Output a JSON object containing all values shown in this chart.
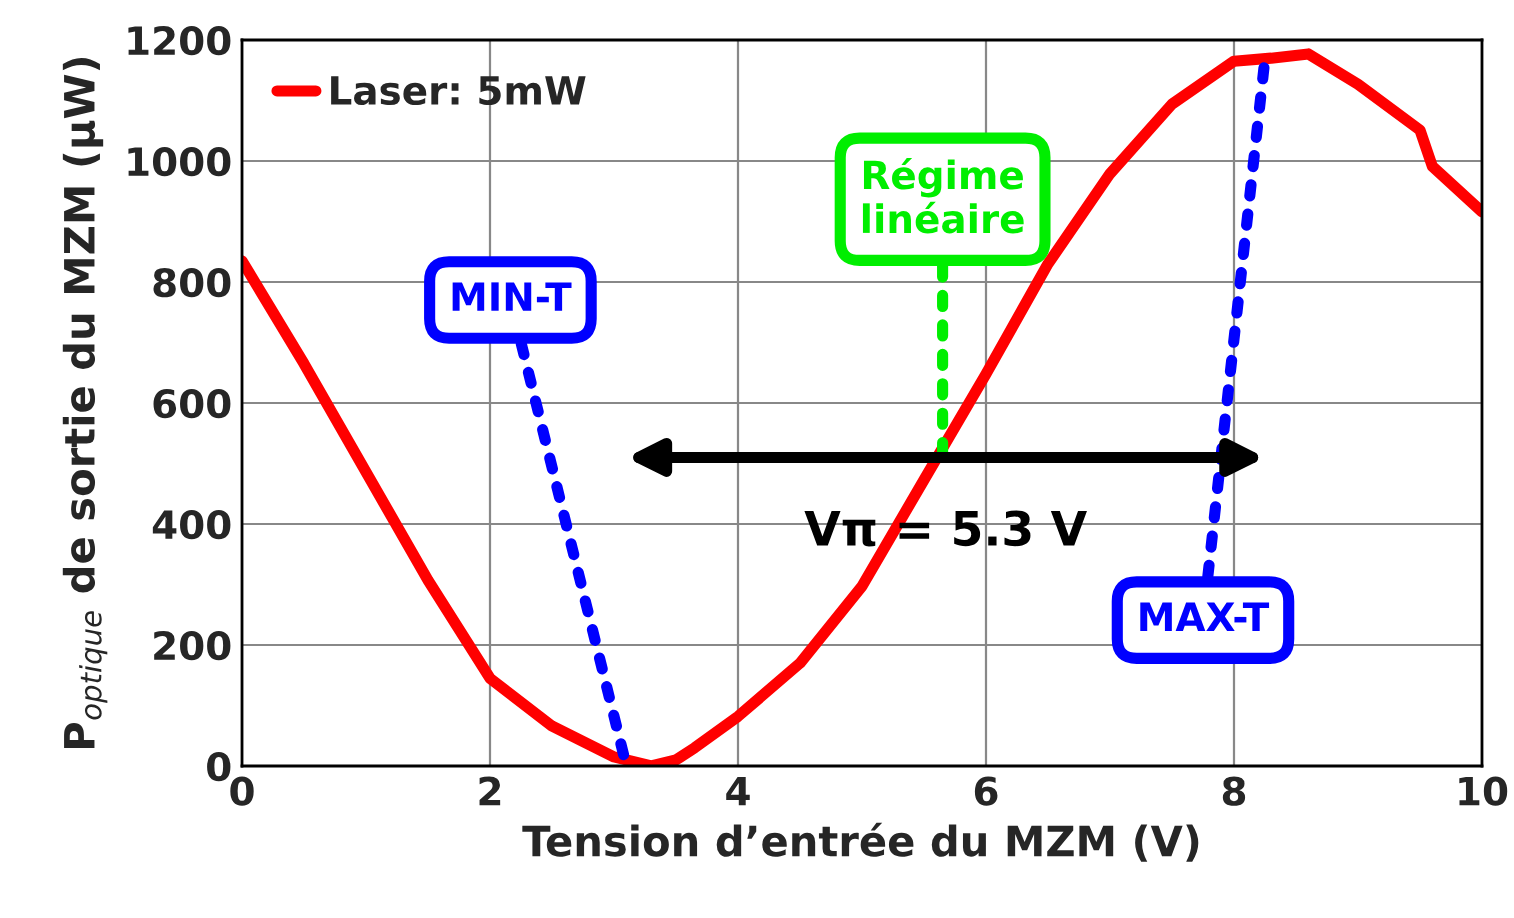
{
  "chart_data": {
    "type": "line",
    "xlabel": "Tension d’entrée du MZM (V)",
    "ylabel": "P$_{optique}$ de sortie du MZM (µW)",
    "x": [
      0,
      0.5,
      1,
      1.5,
      2,
      2.5,
      3,
      3.3,
      3.5,
      3.65,
      4,
      4.5,
      5,
      5.5,
      6,
      6.5,
      7,
      7.5,
      8,
      8.3,
      8.6,
      9,
      9.5,
      9.6,
      10
    ],
    "series": [
      {
        "name": "Laser: 5mW",
        "color": "#ff0000",
        "values": [
          835,
          665,
          486,
          307,
          145,
          66,
          15,
          0,
          10,
          30,
          82,
          170,
          297,
          473,
          648,
          830,
          979,
          1094,
          1165,
          1170,
          1177,
          1127,
          1051,
          991,
          916
        ]
      }
    ],
    "xlim": [
      0,
      10
    ],
    "ylim": [
      0,
      1200
    ],
    "xticks": [
      0,
      2,
      4,
      6,
      8,
      10
    ],
    "yticks": [
      0,
      200,
      400,
      600,
      800,
      1000,
      1200
    ],
    "grid": true,
    "legend": "top left",
    "marker": "none",
    "line_style": "solid",
    "annotations": [
      {
        "text": "MIN-T",
        "x": 3.1,
        "y": 0
      },
      {
        "text": "MAX-T",
        "x": 8.25,
        "y": 1170
      },
      {
        "text": "Régime\nlinéaire",
        "x": 5.65,
        "y": 510
      },
      "Vπ = 5.3 V"
    ]
  }
}
